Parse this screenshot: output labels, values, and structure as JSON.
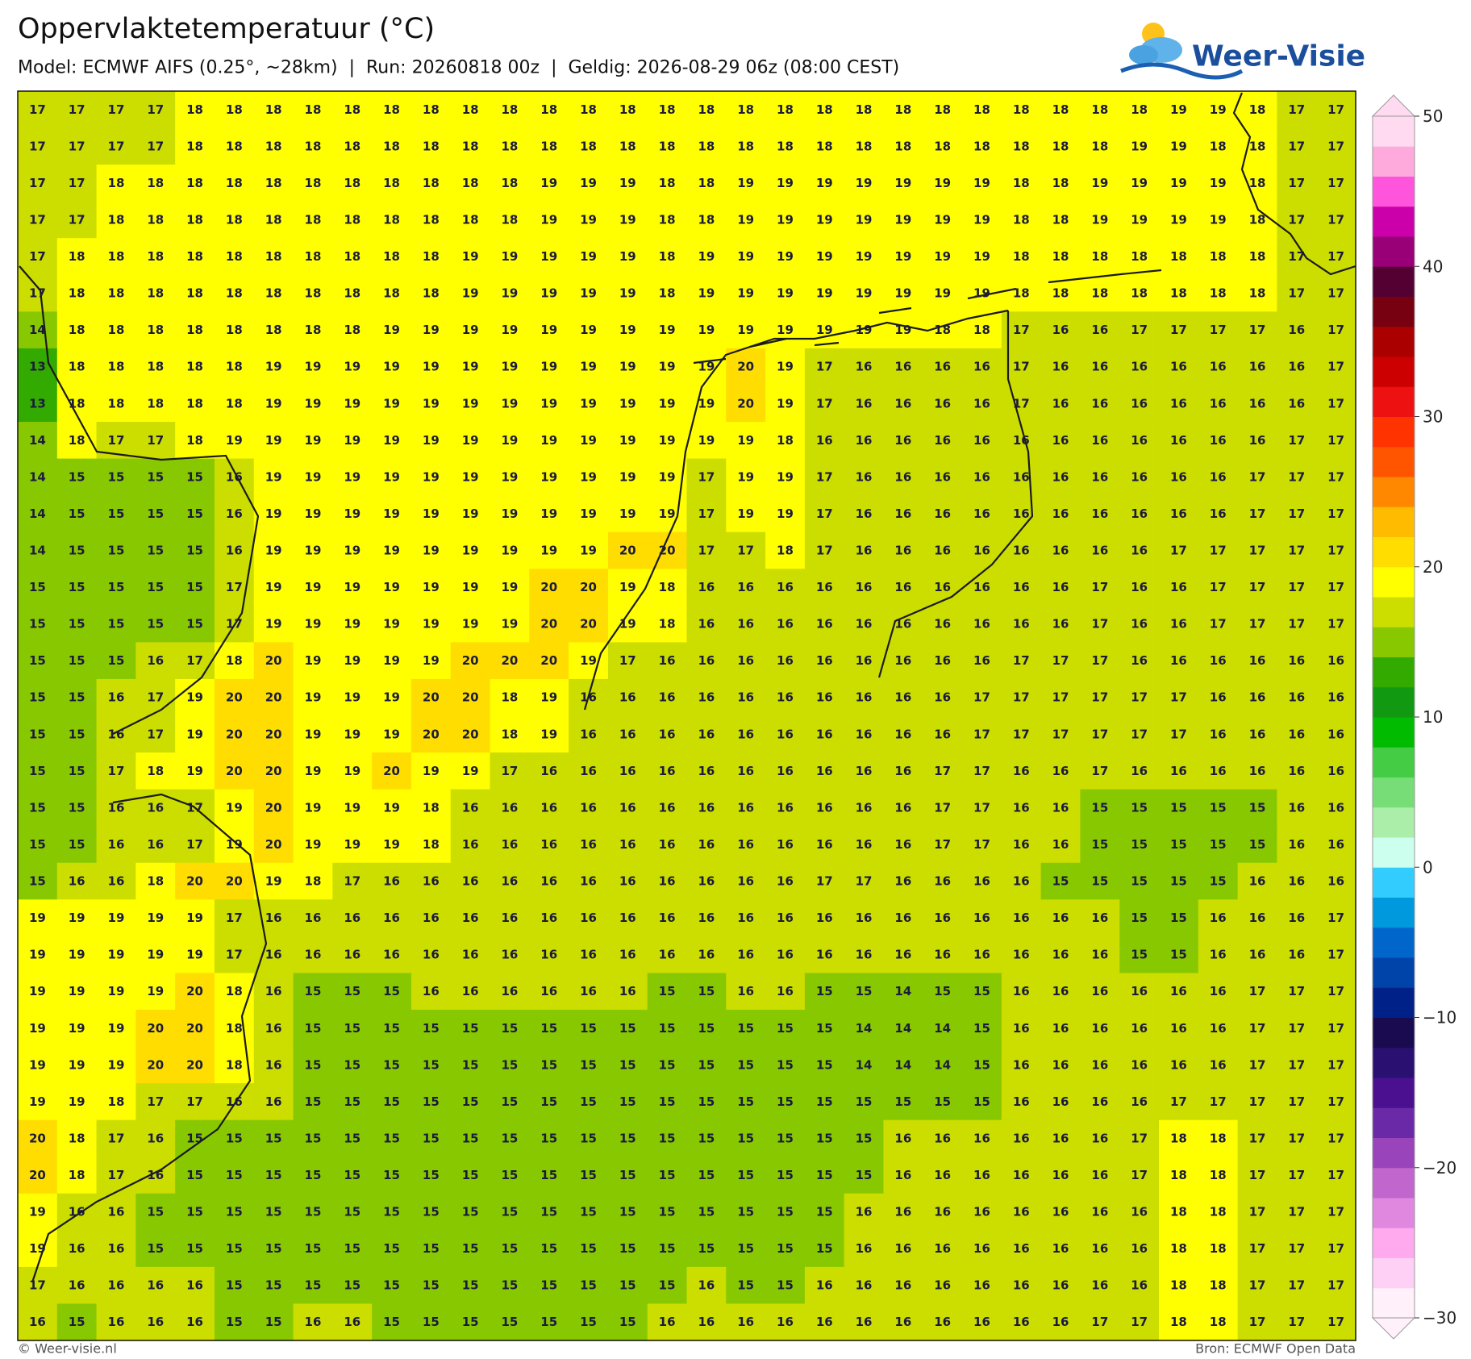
{
  "map": {
    "title": "Oppervlaktetemperatuur (°C)",
    "subtitle": "Model: ECMWF AIFS (0.25°, ~28km)  |  Run: 20260818 00z  |  Geldig: 2026-08-29 06z (08:00 CEST)",
    "logo": "Weer-Visie",
    "footer_left": "© Weer-visie.nl",
    "footer_right": "Bron: ECMWF Open Data",
    "colorbar": {
      "lim": [
        -30,
        50
      ],
      "ticks": [
        {
          "value": -30,
          "label": "−30"
        },
        {
          "value": -20,
          "label": "−20"
        },
        {
          "value": -10,
          "label": "−10"
        },
        0,
        10,
        20,
        30,
        40,
        50
      ],
      "colors": [
        "#fff0fa",
        "#ffd0f5",
        "#ffaaee",
        "#e088e0",
        "#c066cc",
        "#9a44bb",
        "#6a2aa8",
        "#4a1090",
        "#2a1070",
        "#1a0a50",
        "#002288",
        "#0044aa",
        "#0066cc",
        "#0099dd",
        "#33ccff",
        "#ccffee",
        "#aaeeaa",
        "#77dd77",
        "#44cc44",
        "#00bb00",
        "#119911",
        "#33aa00",
        "#88c800",
        "#ccdd00",
        "#ffff00",
        "#ffdd00",
        "#ffbb00",
        "#ff8800",
        "#ff5500",
        "#ff3300",
        "#ee1111",
        "#cc0000",
        "#aa0000",
        "#770011",
        "#550033",
        "#990077",
        "#cc00aa",
        "#ff55dd",
        "#ffaadd",
        "#ffdaf0"
      ]
    },
    "grid": [
      [
        17,
        17,
        17,
        17,
        18,
        18,
        18,
        18,
        18,
        18,
        18,
        18,
        18,
        18,
        18,
        18,
        18,
        18,
        18,
        18,
        18,
        18,
        18,
        18,
        18,
        18,
        18,
        18,
        18,
        19,
        19,
        18,
        17,
        17
      ],
      [
        17,
        17,
        17,
        17,
        18,
        18,
        18,
        18,
        18,
        18,
        18,
        18,
        18,
        18,
        18,
        18,
        18,
        18,
        18,
        18,
        18,
        18,
        18,
        18,
        18,
        18,
        18,
        18,
        19,
        19,
        18,
        18,
        17,
        17
      ],
      [
        17,
        17,
        18,
        18,
        18,
        18,
        18,
        18,
        18,
        18,
        18,
        18,
        18,
        19,
        19,
        19,
        18,
        18,
        19,
        19,
        19,
        19,
        19,
        19,
        19,
        18,
        18,
        19,
        19,
        19,
        19,
        18,
        17,
        17
      ],
      [
        17,
        17,
        18,
        18,
        18,
        18,
        18,
        18,
        18,
        18,
        18,
        18,
        18,
        19,
        19,
        19,
        18,
        18,
        19,
        19,
        19,
        19,
        19,
        19,
        19,
        18,
        18,
        19,
        19,
        19,
        19,
        18,
        17,
        17
      ],
      [
        17,
        18,
        18,
        18,
        18,
        18,
        18,
        18,
        18,
        18,
        18,
        19,
        19,
        19,
        19,
        19,
        18,
        19,
        19,
        19,
        19,
        19,
        19,
        19,
        19,
        18,
        18,
        18,
        18,
        18,
        18,
        18,
        17,
        17
      ],
      [
        17,
        18,
        18,
        18,
        18,
        18,
        18,
        18,
        18,
        18,
        18,
        19,
        19,
        19,
        19,
        19,
        18,
        19,
        19,
        19,
        19,
        19,
        19,
        19,
        19,
        18,
        18,
        18,
        18,
        18,
        18,
        18,
        17,
        17
      ],
      [
        14,
        18,
        18,
        18,
        18,
        18,
        18,
        18,
        18,
        19,
        19,
        19,
        19,
        19,
        19,
        19,
        19,
        19,
        19,
        19,
        19,
        19,
        19,
        18,
        18,
        17,
        16,
        16,
        17,
        17,
        17,
        17,
        16,
        17
      ],
      [
        13,
        18,
        18,
        18,
        18,
        18,
        19,
        19,
        19,
        19,
        19,
        19,
        19,
        19,
        19,
        19,
        19,
        19,
        20,
        19,
        17,
        16,
        16,
        16,
        16,
        17,
        16,
        16,
        16,
        16,
        16,
        16,
        16,
        17
      ],
      [
        13,
        18,
        18,
        18,
        18,
        18,
        19,
        19,
        19,
        19,
        19,
        19,
        19,
        19,
        19,
        19,
        19,
        19,
        20,
        19,
        17,
        16,
        16,
        16,
        16,
        17,
        16,
        16,
        16,
        16,
        16,
        16,
        16,
        17
      ],
      [
        14,
        18,
        17,
        17,
        18,
        19,
        19,
        19,
        19,
        19,
        19,
        19,
        19,
        19,
        19,
        19,
        19,
        19,
        19,
        18,
        16,
        16,
        16,
        16,
        16,
        16,
        16,
        16,
        16,
        16,
        16,
        16,
        17,
        17
      ],
      [
        14,
        15,
        15,
        15,
        15,
        16,
        19,
        19,
        19,
        19,
        19,
        19,
        19,
        19,
        19,
        19,
        19,
        17,
        19,
        19,
        17,
        16,
        16,
        16,
        16,
        16,
        16,
        16,
        16,
        16,
        16,
        17,
        17,
        17
      ],
      [
        14,
        15,
        15,
        15,
        15,
        16,
        19,
        19,
        19,
        19,
        19,
        19,
        19,
        19,
        19,
        19,
        19,
        17,
        19,
        19,
        17,
        16,
        16,
        16,
        16,
        16,
        16,
        16,
        16,
        16,
        16,
        17,
        17,
        17
      ],
      [
        14,
        15,
        15,
        15,
        15,
        16,
        19,
        19,
        19,
        19,
        19,
        19,
        19,
        19,
        19,
        20,
        20,
        17,
        17,
        18,
        17,
        16,
        16,
        16,
        16,
        16,
        16,
        16,
        16,
        17,
        17,
        17,
        17,
        17
      ],
      [
        15,
        15,
        15,
        15,
        15,
        17,
        19,
        19,
        19,
        19,
        19,
        19,
        19,
        20,
        20,
        19,
        18,
        16,
        16,
        16,
        16,
        16,
        16,
        16,
        16,
        16,
        16,
        17,
        16,
        16,
        17,
        17,
        17,
        17
      ],
      [
        15,
        15,
        15,
        15,
        15,
        17,
        19,
        19,
        19,
        19,
        19,
        19,
        19,
        20,
        20,
        19,
        18,
        16,
        16,
        16,
        16,
        16,
        16,
        16,
        16,
        16,
        16,
        17,
        16,
        16,
        17,
        17,
        17,
        17
      ],
      [
        15,
        15,
        15,
        16,
        17,
        18,
        20,
        19,
        19,
        19,
        19,
        20,
        20,
        20,
        19,
        17,
        16,
        16,
        16,
        16,
        16,
        16,
        16,
        16,
        16,
        17,
        17,
        17,
        16,
        16,
        16,
        16,
        16,
        16
      ],
      [
        15,
        15,
        16,
        17,
        19,
        20,
        20,
        19,
        19,
        19,
        20,
        20,
        18,
        19,
        16,
        16,
        16,
        16,
        16,
        16,
        16,
        16,
        16,
        16,
        17,
        17,
        17,
        17,
        17,
        17,
        16,
        16,
        16,
        16
      ],
      [
        15,
        15,
        16,
        17,
        19,
        20,
        20,
        19,
        19,
        19,
        20,
        20,
        18,
        19,
        16,
        16,
        16,
        16,
        16,
        16,
        16,
        16,
        16,
        16,
        17,
        17,
        17,
        17,
        17,
        17,
        16,
        16,
        16,
        16
      ],
      [
        15,
        15,
        17,
        18,
        19,
        20,
        20,
        19,
        19,
        20,
        19,
        19,
        17,
        16,
        16,
        16,
        16,
        16,
        16,
        16,
        16,
        16,
        16,
        17,
        17,
        16,
        16,
        17,
        16,
        16,
        16,
        16,
        16,
        16
      ],
      [
        15,
        15,
        16,
        16,
        17,
        19,
        20,
        19,
        19,
        19,
        18,
        16,
        16,
        16,
        16,
        16,
        16,
        16,
        16,
        16,
        16,
        16,
        16,
        17,
        17,
        16,
        16,
        15,
        15,
        15,
        15,
        15,
        16,
        16
      ],
      [
        15,
        15,
        16,
        16,
        17,
        19,
        20,
        19,
        19,
        19,
        18,
        16,
        16,
        16,
        16,
        16,
        16,
        16,
        16,
        16,
        16,
        16,
        16,
        17,
        17,
        16,
        16,
        15,
        15,
        15,
        15,
        15,
        16,
        16
      ],
      [
        15,
        16,
        16,
        18,
        20,
        20,
        19,
        18,
        17,
        16,
        16,
        16,
        16,
        16,
        16,
        16,
        16,
        16,
        16,
        16,
        17,
        17,
        16,
        16,
        16,
        16,
        15,
        15,
        15,
        15,
        15,
        16,
        16,
        16
      ],
      [
        19,
        19,
        19,
        19,
        19,
        17,
        16,
        16,
        16,
        16,
        16,
        16,
        16,
        16,
        16,
        16,
        16,
        16,
        16,
        16,
        16,
        16,
        16,
        16,
        16,
        16,
        16,
        16,
        15,
        15,
        16,
        16,
        16,
        17
      ],
      [
        19,
        19,
        19,
        19,
        19,
        17,
        16,
        16,
        16,
        16,
        16,
        16,
        16,
        16,
        16,
        16,
        16,
        16,
        16,
        16,
        16,
        16,
        16,
        16,
        16,
        16,
        16,
        16,
        15,
        15,
        16,
        16,
        16,
        17
      ],
      [
        19,
        19,
        19,
        19,
        20,
        18,
        16,
        15,
        15,
        15,
        16,
        16,
        16,
        16,
        16,
        16,
        15,
        15,
        16,
        16,
        15,
        15,
        14,
        15,
        15,
        16,
        16,
        16,
        16,
        16,
        16,
        17,
        17,
        17
      ],
      [
        19,
        19,
        19,
        20,
        20,
        18,
        16,
        15,
        15,
        15,
        15,
        15,
        15,
        15,
        15,
        15,
        15,
        15,
        15,
        15,
        15,
        14,
        14,
        14,
        15,
        16,
        16,
        16,
        16,
        16,
        16,
        17,
        17,
        17
      ],
      [
        19,
        19,
        19,
        20,
        20,
        18,
        16,
        15,
        15,
        15,
        15,
        15,
        15,
        15,
        15,
        15,
        15,
        15,
        15,
        15,
        15,
        14,
        14,
        14,
        15,
        16,
        16,
        16,
        16,
        16,
        16,
        17,
        17,
        17
      ],
      [
        19,
        19,
        18,
        17,
        17,
        16,
        16,
        15,
        15,
        15,
        15,
        15,
        15,
        15,
        15,
        15,
        15,
        15,
        15,
        15,
        15,
        15,
        15,
        15,
        15,
        16,
        16,
        16,
        16,
        17,
        17,
        17,
        17,
        17
      ],
      [
        20,
        18,
        17,
        16,
        15,
        15,
        15,
        15,
        15,
        15,
        15,
        15,
        15,
        15,
        15,
        15,
        15,
        15,
        15,
        15,
        15,
        15,
        16,
        16,
        16,
        16,
        16,
        16,
        17,
        18,
        18,
        17,
        17,
        17
      ],
      [
        20,
        18,
        17,
        16,
        15,
        15,
        15,
        15,
        15,
        15,
        15,
        15,
        15,
        15,
        15,
        15,
        15,
        15,
        15,
        15,
        15,
        15,
        16,
        16,
        16,
        16,
        16,
        16,
        17,
        18,
        18,
        17,
        17,
        17
      ],
      [
        19,
        16,
        16,
        15,
        15,
        15,
        15,
        15,
        15,
        15,
        15,
        15,
        15,
        15,
        15,
        15,
        15,
        15,
        15,
        15,
        15,
        16,
        16,
        16,
        16,
        16,
        16,
        16,
        16,
        18,
        18,
        17,
        17,
        17
      ],
      [
        19,
        16,
        16,
        15,
        15,
        15,
        15,
        15,
        15,
        15,
        15,
        15,
        15,
        15,
        15,
        15,
        15,
        15,
        15,
        15,
        15,
        16,
        16,
        16,
        16,
        16,
        16,
        16,
        16,
        18,
        18,
        17,
        17,
        17
      ],
      [
        17,
        16,
        16,
        16,
        16,
        15,
        15,
        15,
        15,
        15,
        15,
        15,
        15,
        15,
        15,
        15,
        15,
        16,
        15,
        15,
        16,
        16,
        16,
        16,
        16,
        16,
        16,
        16,
        16,
        18,
        18,
        17,
        17,
        17
      ],
      [
        16,
        15,
        16,
        16,
        16,
        15,
        15,
        16,
        16,
        15,
        15,
        15,
        15,
        15,
        15,
        15,
        16,
        16,
        16,
        16,
        16,
        16,
        16,
        16,
        16,
        16,
        16,
        17,
        17,
        18,
        18,
        17,
        17,
        17
      ]
    ]
  }
}
